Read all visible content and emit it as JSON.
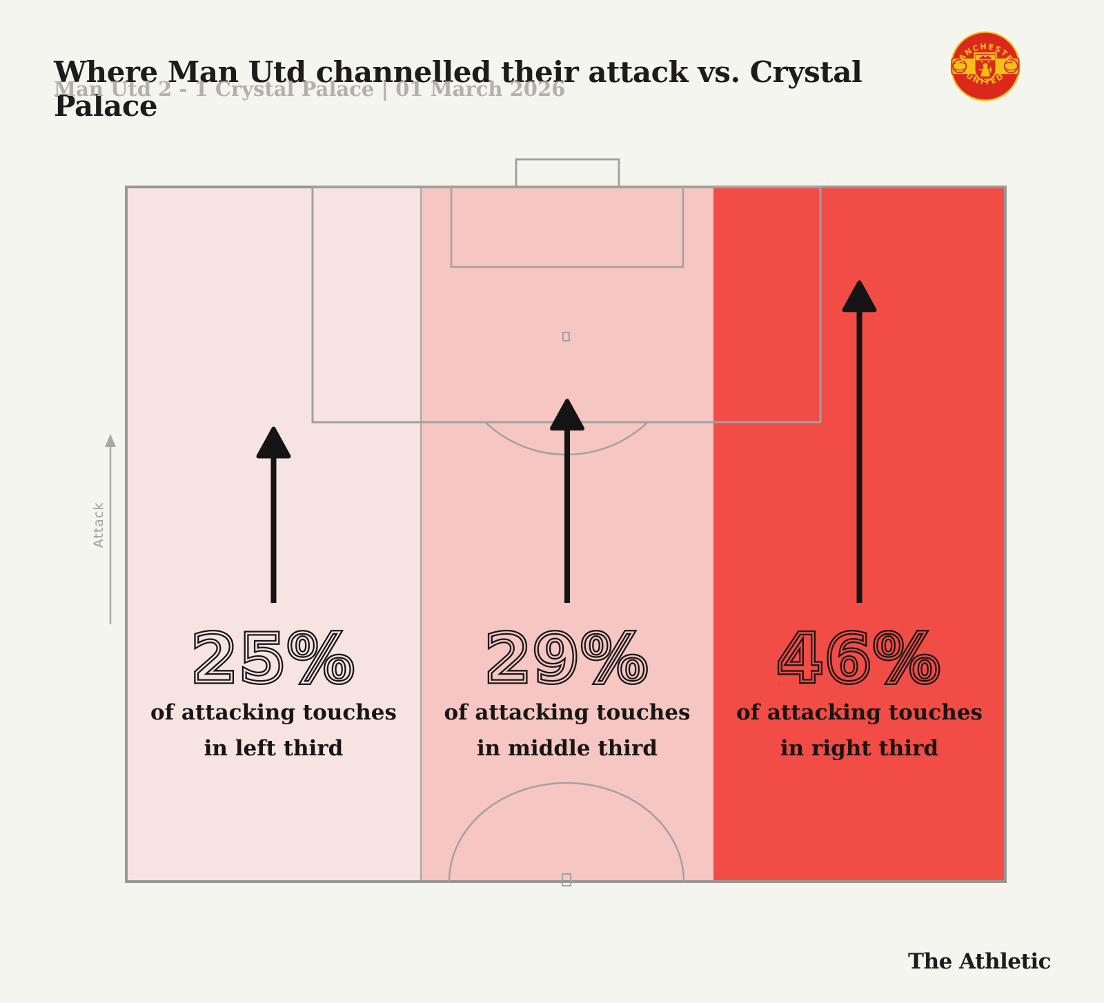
{
  "header": {
    "title": "Where Man Utd channelled their attack vs. Crystal Palace",
    "subtitle": "Man Utd 2 - 1 Crystal Palace | 01 March 2026",
    "crest": {
      "top_text": "MANCHESTER",
      "bottom_text": "UNITED",
      "red": "#da291c",
      "gold": "#f3c117"
    }
  },
  "pitch": {
    "attack_label": "Attack",
    "line_color": "#a3a1a0"
  },
  "zones": [
    {
      "pct": "25%",
      "line1": "of attacking touches",
      "line2": "in left third",
      "color": "#f7e4e2"
    },
    {
      "pct": "29%",
      "line1": "of attacking touches",
      "line2": "in middle third",
      "color": "#f5c6c2"
    },
    {
      "pct": "46%",
      "line1": "of attacking touches",
      "line2": "in right third",
      "color": "#f14c46"
    }
  ],
  "footer": {
    "brand": "The Athletic"
  },
  "chart_data": {
    "type": "bar",
    "categories": [
      "left third",
      "middle third",
      "right third"
    ],
    "values": [
      25,
      29,
      46
    ],
    "unit": "% of attacking touches",
    "title": "Where Man Utd channelled their attack vs. Crystal Palace",
    "subtitle": "Man Utd 2 - 1 Crystal Palace | 01 March 2026",
    "zone_colors": [
      "#f7e4e2",
      "#f5c6c2",
      "#f14c46"
    ],
    "direction_label": "Attack",
    "layout": "attacking half of football pitch split into vertical thirds; arrow length proportional to percentage, pointing toward goal"
  }
}
